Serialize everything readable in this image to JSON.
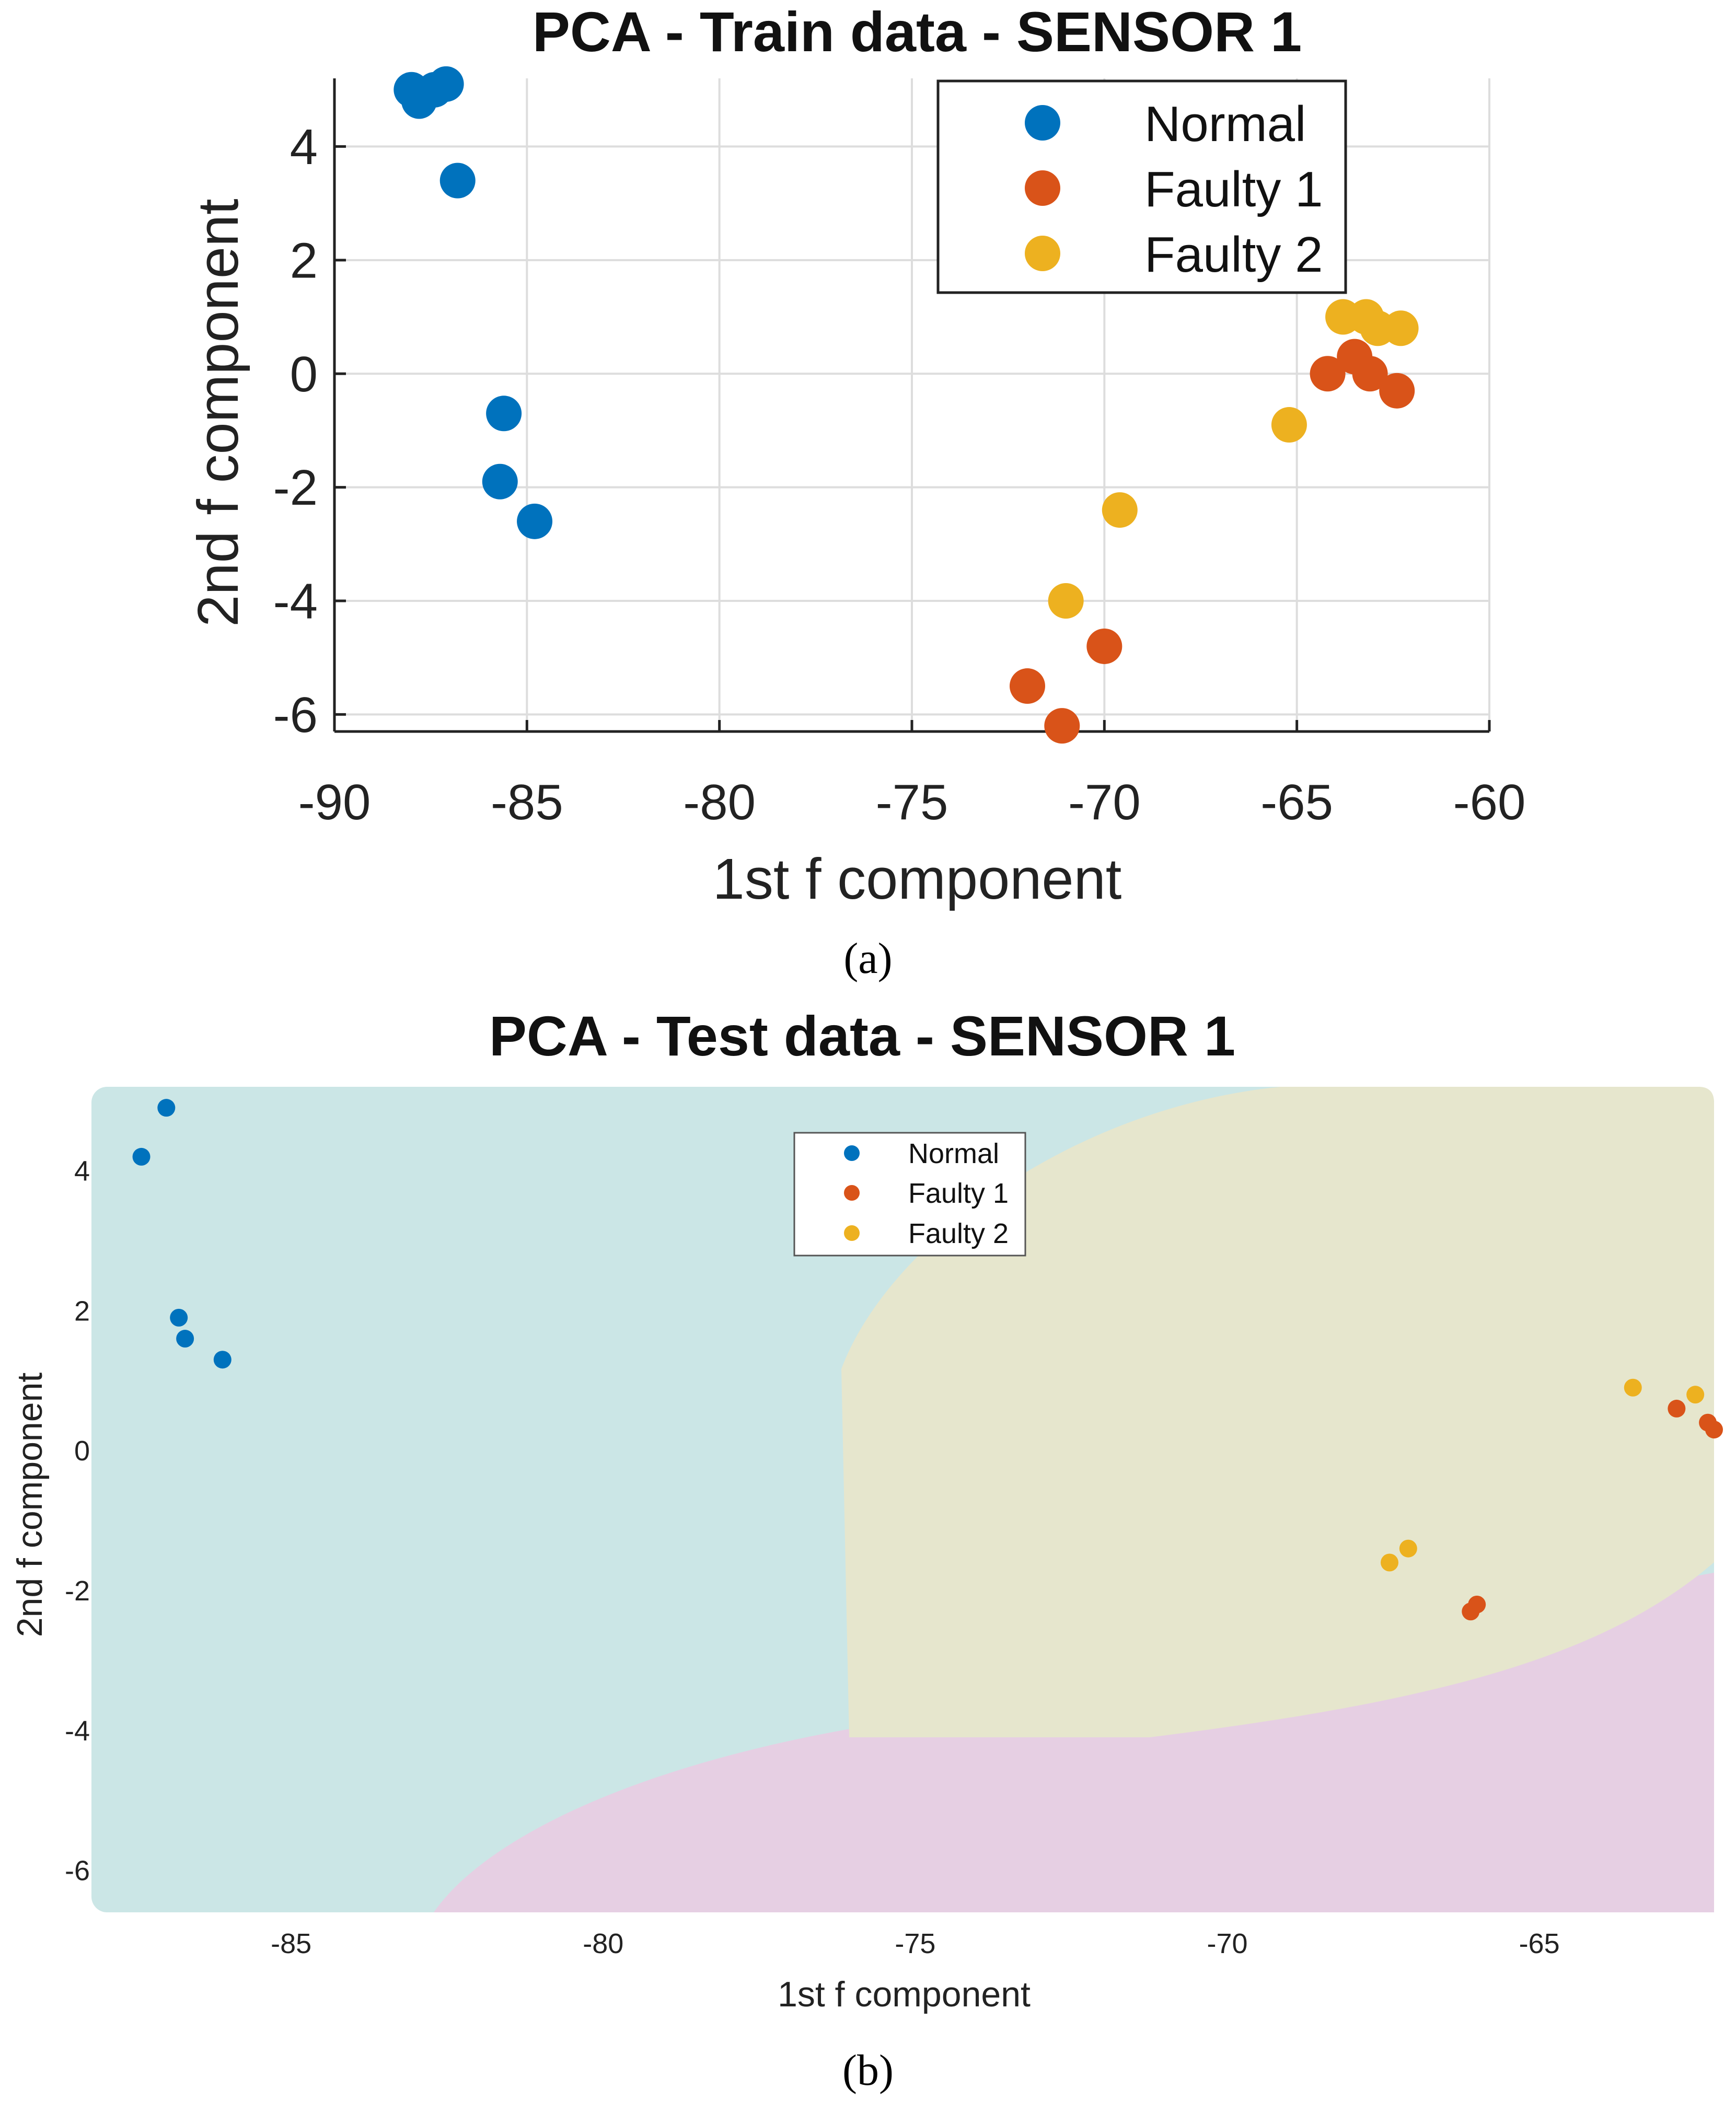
{
  "chart_data": [
    {
      "type": "scatter",
      "title": "PCA - Train data - SENSOR 1",
      "xlabel": "1st f component",
      "ylabel": "2nd f component",
      "xlim": [
        -90,
        -60
      ],
      "ylim": [
        -6.3,
        5.2
      ],
      "xticks": [
        -90,
        -85,
        -80,
        -75,
        -70,
        -65,
        -60
      ],
      "yticks": [
        -6,
        -4,
        -2,
        0,
        2,
        4
      ],
      "grid": true,
      "legend_position": "top-right",
      "caption": "(a)",
      "colors": {
        "Normal": "#0072BD",
        "Faulty 1": "#D95319",
        "Faulty 2": "#EDB120"
      },
      "series": [
        {
          "name": "Normal",
          "points": [
            [
              -88.0,
              5.0
            ],
            [
              -87.8,
              4.8
            ],
            [
              -87.4,
              5.0
            ],
            [
              -87.1,
              5.1
            ],
            [
              -86.8,
              3.4
            ],
            [
              -85.6,
              -0.7
            ],
            [
              -85.7,
              -1.9
            ],
            [
              -84.8,
              -2.6
            ]
          ]
        },
        {
          "name": "Faulty 1",
          "points": [
            [
              -71.1,
              -6.2
            ],
            [
              -72.0,
              -5.5
            ],
            [
              -70.0,
              -4.8
            ],
            [
              -64.2,
              0.0
            ],
            [
              -63.5,
              0.3
            ],
            [
              -63.1,
              0.0
            ],
            [
              -62.4,
              -0.3
            ]
          ]
        },
        {
          "name": "Faulty 2",
          "points": [
            [
              -71.0,
              -4.0
            ],
            [
              -69.6,
              -2.4
            ],
            [
              -65.2,
              -0.9
            ],
            [
              -63.8,
              1.0
            ],
            [
              -63.2,
              1.0
            ],
            [
              -62.9,
              0.8
            ],
            [
              -62.3,
              0.8
            ]
          ]
        }
      ]
    },
    {
      "type": "scatter",
      "title": "PCA - Test data - SENSOR 1",
      "xlabel": "1st f component",
      "ylabel": "2nd f component",
      "xlim": [
        -88.2,
        -62.2
      ],
      "ylim": [
        -6.6,
        5.2
      ],
      "xticks": [
        -85,
        -80,
        -75,
        -70,
        -65
      ],
      "yticks": [
        -6,
        -4,
        -2,
        0,
        2,
        4
      ],
      "grid": false,
      "legend_position": "top-center",
      "caption": "(b)",
      "colors": {
        "Normal": "#0072BD",
        "Faulty 1": "#D95319",
        "Faulty 2": "#EDB120"
      },
      "regions": {
        "Normal": "#cbe6e6",
        "Faulty 1": "#e6cfe3",
        "Faulty 2": "#e6e6cd"
      },
      "series": [
        {
          "name": "Normal",
          "points": [
            [
              -87.0,
              4.9
            ],
            [
              -87.4,
              4.2
            ],
            [
              -86.8,
              1.9
            ],
            [
              -86.7,
              1.6
            ],
            [
              -86.1,
              1.3
            ]
          ]
        },
        {
          "name": "Faulty 1",
          "points": [
            [
              -62.8,
              0.6
            ],
            [
              -62.3,
              0.4
            ],
            [
              -62.2,
              0.3
            ],
            [
              -66.0,
              -2.2
            ],
            [
              -66.1,
              -2.3
            ]
          ]
        },
        {
          "name": "Faulty 2",
          "points": [
            [
              -63.5,
              0.9
            ],
            [
              -62.5,
              0.8
            ],
            [
              -67.1,
              -1.4
            ],
            [
              -67.4,
              -1.6
            ]
          ]
        }
      ]
    }
  ]
}
